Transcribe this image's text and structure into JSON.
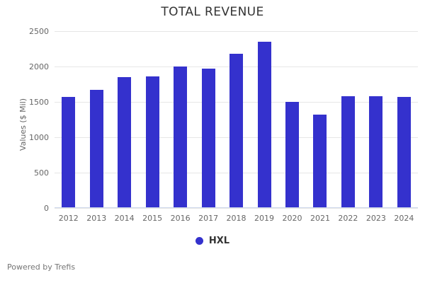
{
  "chart_data": {
    "type": "bar",
    "title": "TOTAL REVENUE",
    "xlabel": "",
    "ylabel": "Values ($ Mil)",
    "categories": [
      "2012",
      "2013",
      "2014",
      "2015",
      "2016",
      "2017",
      "2018",
      "2019",
      "2020",
      "2021",
      "2022",
      "2023",
      "2024"
    ],
    "series": [
      {
        "name": "HXL",
        "values": [
          1575,
          1675,
          1855,
          1860,
          2000,
          1970,
          2185,
          2355,
          1500,
          1325,
          1580,
          1580,
          1570
        ]
      }
    ],
    "ylim": [
      0,
      2500
    ],
    "yticks": [
      0,
      500,
      1000,
      1500,
      2000,
      2500
    ],
    "grid": "horizontal",
    "legend_position": "bottom-center"
  },
  "footer": {
    "text": "Powered by Trefis"
  },
  "colors": {
    "bar": "#3431cd",
    "gridline": "#e6e6e6",
    "axis_line": "#ccd6eb",
    "title_text": "#333333",
    "tick_text": "#666666",
    "footer_text": "#757575"
  }
}
